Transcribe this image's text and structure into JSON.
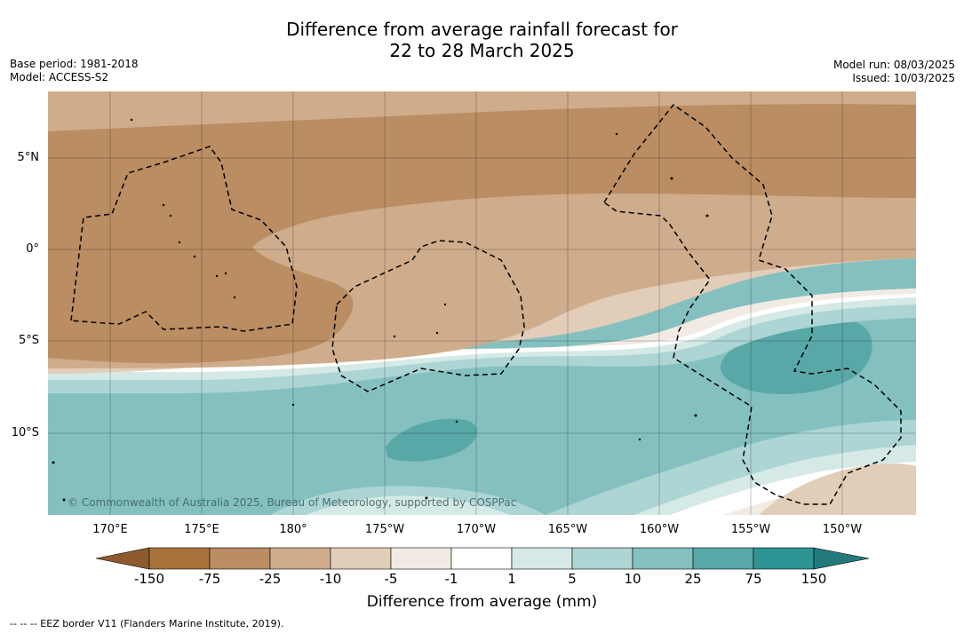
{
  "title_line1": "Difference from average rainfall forecast for",
  "title_line2": "22 to 28 March 2025",
  "base_period": "Base period: 1981-2018",
  "model": "Model: ACCESS-S2",
  "model_run": "Model run: 08/03/2025",
  "issued": "Issued: 10/03/2025",
  "lat_labels": [
    "5°N",
    "0°",
    "5°S",
    "10°S"
  ],
  "lon_labels": [
    "170°E",
    "175°E",
    "180°",
    "175°W",
    "170°W",
    "165°W",
    "160°W",
    "155°W",
    "150°W"
  ],
  "colorbar": {
    "ticks": [
      "-150",
      "-75",
      "-25",
      "-10",
      "-5",
      "-1",
      "1",
      "5",
      "10",
      "25",
      "75",
      "150"
    ],
    "colors": [
      "#a8733b",
      "#ba8d62",
      "#cfac8b",
      "#e2cdb9",
      "#f2ebe3",
      "#ffffff",
      "#d5e9e6",
      "#acd5d4",
      "#84c0c0",
      "#58a8a8",
      "#2f9494"
    ],
    "under_color": "#8c5a2d",
    "over_color": "#247a7a",
    "label": "Difference from average (mm)"
  },
  "credit": "© Commonwealth of Australia 2025, Bureau of Meteorology, supported by COSPPac",
  "eez_note": "--  --  -- EEZ border V11 (Flanders Marine Institute, 2019)."
}
